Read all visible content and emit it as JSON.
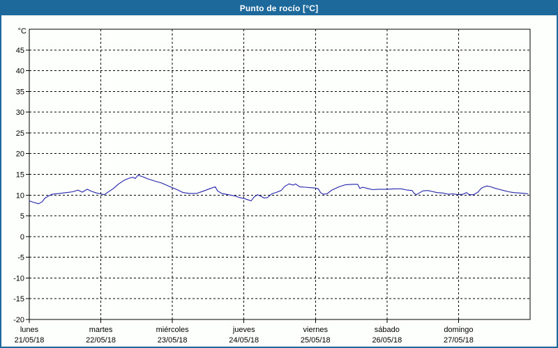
{
  "window": {
    "title": "Punto de rocío [°C]"
  },
  "colors": {
    "titlebar": "#1e699c",
    "frame": "#1e699c",
    "line": "#2020aa",
    "axis": "#000000",
    "background": "#fdfffd"
  },
  "chart_data": {
    "type": "line",
    "title": "Punto de rocío [°C]",
    "ylabel": "°C",
    "xlabel": "",
    "ylim": [
      -20,
      50
    ],
    "yticks": [
      -20,
      -15,
      -10,
      -5,
      0,
      5,
      10,
      15,
      20,
      25,
      30,
      35,
      40,
      45
    ],
    "x_span_days": 7,
    "grid": "dashed",
    "legend": "none",
    "days": [
      {
        "name": "lunes",
        "date": "21/05/18"
      },
      {
        "name": "martes",
        "date": "22/05/18"
      },
      {
        "name": "miércoles",
        "date": "23/05/18"
      },
      {
        "name": "jueves",
        "date": "24/05/18"
      },
      {
        "name": "viernes",
        "date": "25/05/18"
      },
      {
        "name": "sábado",
        "date": "26/05/18"
      },
      {
        "name": "domingo",
        "date": "27/05/18"
      }
    ],
    "series": [
      {
        "name": "Punto de rocío [°C]",
        "color": "#2020aa",
        "points": [
          [
            0.0,
            8.6
          ],
          [
            0.05,
            8.3
          ],
          [
            0.13,
            7.9
          ],
          [
            0.18,
            8.4
          ],
          [
            0.22,
            9.3
          ],
          [
            0.27,
            9.8
          ],
          [
            0.32,
            10.2
          ],
          [
            0.42,
            10.4
          ],
          [
            0.52,
            10.6
          ],
          [
            0.61,
            10.8
          ],
          [
            0.68,
            11.2
          ],
          [
            0.74,
            10.7
          ],
          [
            0.81,
            11.4
          ],
          [
            0.87,
            10.9
          ],
          [
            0.94,
            10.5
          ],
          [
            1.0,
            10.3
          ],
          [
            1.05,
            10.1
          ],
          [
            1.1,
            10.7
          ],
          [
            1.17,
            11.5
          ],
          [
            1.25,
            12.7
          ],
          [
            1.33,
            13.6
          ],
          [
            1.4,
            14.1
          ],
          [
            1.45,
            14.3
          ],
          [
            1.48,
            14.0
          ],
          [
            1.52,
            14.8
          ],
          [
            1.59,
            14.4
          ],
          [
            1.66,
            13.9
          ],
          [
            1.75,
            13.4
          ],
          [
            1.85,
            12.9
          ],
          [
            1.93,
            12.3
          ],
          [
            2.0,
            11.8
          ],
          [
            2.08,
            11.2
          ],
          [
            2.15,
            10.6
          ],
          [
            2.24,
            10.4
          ],
          [
            2.34,
            10.4
          ],
          [
            2.44,
            11.0
          ],
          [
            2.53,
            11.6
          ],
          [
            2.6,
            12.0
          ],
          [
            2.63,
            11.0
          ],
          [
            2.69,
            10.4
          ],
          [
            2.78,
            10.1
          ],
          [
            2.87,
            9.8
          ],
          [
            2.94,
            9.4
          ],
          [
            3.0,
            9.2
          ],
          [
            3.05,
            8.9
          ],
          [
            3.1,
            8.6
          ],
          [
            3.14,
            9.5
          ],
          [
            3.19,
            10.1
          ],
          [
            3.24,
            9.7
          ],
          [
            3.28,
            9.3
          ],
          [
            3.33,
            9.4
          ],
          [
            3.39,
            10.3
          ],
          [
            3.46,
            10.7
          ],
          [
            3.52,
            11.1
          ],
          [
            3.57,
            12.1
          ],
          [
            3.63,
            12.7
          ],
          [
            3.69,
            12.4
          ],
          [
            3.72,
            12.7
          ],
          [
            3.78,
            12.0
          ],
          [
            3.86,
            11.9
          ],
          [
            3.92,
            11.8
          ],
          [
            4.0,
            11.7
          ],
          [
            4.04,
            11.5
          ],
          [
            4.07,
            10.6
          ],
          [
            4.11,
            10.2
          ],
          [
            4.16,
            10.3
          ],
          [
            4.23,
            11.2
          ],
          [
            4.33,
            12.0
          ],
          [
            4.42,
            12.5
          ],
          [
            4.52,
            12.6
          ],
          [
            4.59,
            12.6
          ],
          [
            4.62,
            11.6
          ],
          [
            4.66,
            11.9
          ],
          [
            4.73,
            11.6
          ],
          [
            4.8,
            11.3
          ],
          [
            4.88,
            11.4
          ],
          [
            5.0,
            11.4
          ],
          [
            5.1,
            11.5
          ],
          [
            5.2,
            11.5
          ],
          [
            5.28,
            11.2
          ],
          [
            5.35,
            11.1
          ],
          [
            5.38,
            10.4
          ],
          [
            5.41,
            10.1
          ],
          [
            5.45,
            10.5
          ],
          [
            5.5,
            11.0
          ],
          [
            5.57,
            11.1
          ],
          [
            5.62,
            10.9
          ],
          [
            5.7,
            10.6
          ],
          [
            5.78,
            10.5
          ],
          [
            5.86,
            10.2
          ],
          [
            5.92,
            10.3
          ],
          [
            6.0,
            10.1
          ],
          [
            6.06,
            10.2
          ],
          [
            6.11,
            10.6
          ],
          [
            6.15,
            10.1
          ],
          [
            6.21,
            10.1
          ],
          [
            6.27,
            10.7
          ],
          [
            6.32,
            11.7
          ],
          [
            6.36,
            12.0
          ],
          [
            6.4,
            12.2
          ],
          [
            6.45,
            12.0
          ],
          [
            6.5,
            11.7
          ],
          [
            6.56,
            11.4
          ],
          [
            6.63,
            11.1
          ],
          [
            6.7,
            10.8
          ],
          [
            6.77,
            10.6
          ],
          [
            6.85,
            10.5
          ],
          [
            6.93,
            10.4
          ],
          [
            6.97,
            10.3
          ]
        ]
      }
    ]
  }
}
